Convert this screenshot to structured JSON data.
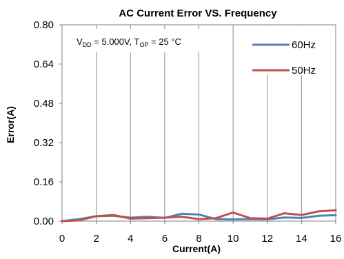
{
  "chart_data": {
    "type": "line",
    "title": "AC Current Error VS. Frequency",
    "xlabel": "Current(A)",
    "ylabel": "Error(A)",
    "xlim": [
      0,
      16
    ],
    "ylim": [
      0,
      0.8
    ],
    "x_ticks": [
      "0",
      "2",
      "4",
      "6",
      "8",
      "10",
      "12",
      "14",
      "16"
    ],
    "y_ticks": [
      "0.00",
      "0.16",
      "0.32",
      "0.48",
      "0.64",
      "0.80"
    ],
    "grid": "vertical",
    "legend_position": "top-right",
    "annotation": {
      "v_main": "V",
      "v_sub": "DD",
      "v_rest": " = 5.000V, T",
      "t_sub": "OP",
      "t_rest": " = 25 °C"
    },
    "x": [
      0,
      1,
      2,
      3,
      4,
      5,
      6,
      7,
      8,
      9,
      10,
      11,
      12,
      13,
      14,
      15,
      16
    ],
    "series": [
      {
        "name": "60Hz",
        "color": "#4f81bd",
        "values": [
          0.0,
          0.008,
          0.02,
          0.022,
          0.014,
          0.018,
          0.013,
          0.03,
          0.027,
          0.008,
          0.007,
          0.008,
          0.007,
          0.015,
          0.013,
          0.022,
          0.024
        ]
      },
      {
        "name": "50Hz",
        "color": "#c0504d",
        "values": [
          0.0,
          0.003,
          0.02,
          0.025,
          0.01,
          0.012,
          0.014,
          0.018,
          0.008,
          0.012,
          0.035,
          0.012,
          0.01,
          0.032,
          0.025,
          0.04,
          0.044
        ]
      }
    ]
  }
}
